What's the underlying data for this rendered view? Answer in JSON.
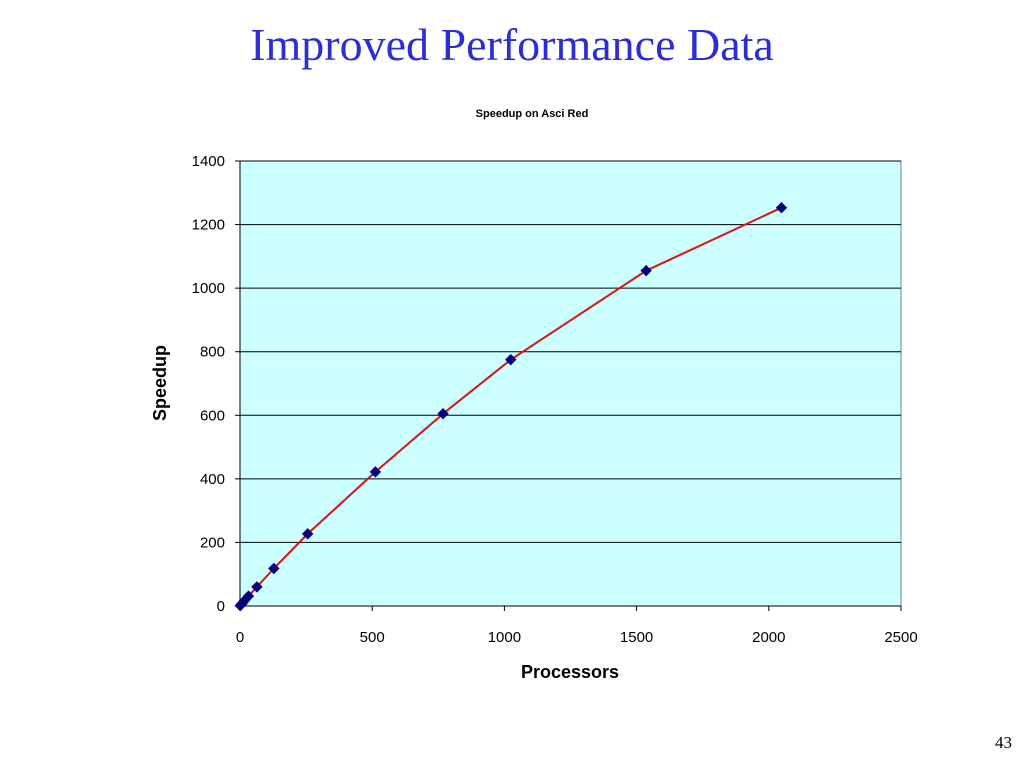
{
  "slide": {
    "title": "Improved Performance Data",
    "page_number": "43"
  },
  "colors": {
    "title": "#2d2dd6",
    "plot_background": "#ccffff",
    "line": "#dd1111",
    "marker": "#000080",
    "gridline": "#000000"
  },
  "chart_data": {
    "type": "scatter",
    "title": "Speedup on Asci Red",
    "xlabel": "Processors",
    "ylabel": "Speedup",
    "xlim": [
      0,
      2500
    ],
    "ylim": [
      0,
      1400
    ],
    "xticks": [
      0,
      500,
      1000,
      1500,
      2000,
      2500
    ],
    "yticks": [
      0,
      200,
      400,
      600,
      800,
      1000,
      1200,
      1400
    ],
    "grid": "horizontal",
    "legend": "none",
    "marker": "diamond",
    "series": [
      {
        "x": [
          1,
          4,
          8,
          16,
          32,
          64,
          128,
          256,
          512,
          768,
          1024,
          1536,
          2048
        ],
        "y": [
          1,
          4,
          8,
          16,
          31,
          60,
          118,
          227,
          422,
          605,
          775,
          1055,
          1253
        ]
      }
    ]
  }
}
